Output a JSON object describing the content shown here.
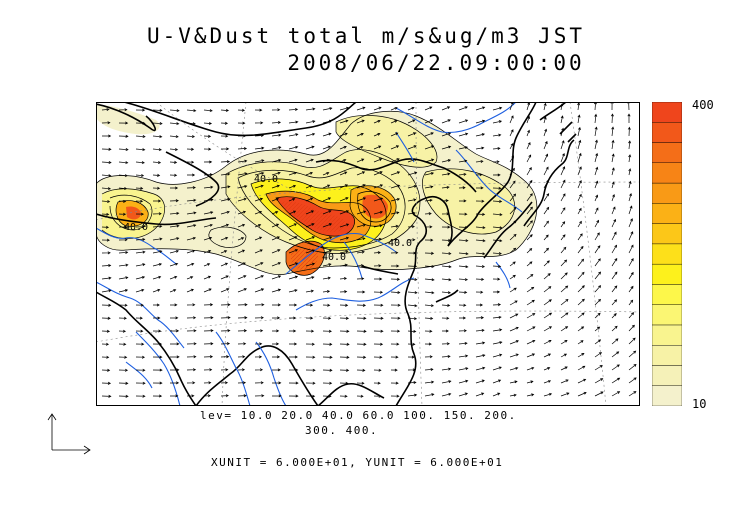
{
  "title": {
    "line1": "U-V&Dust total m/s&ug/m3 JST",
    "line2": "2008/06/22.09:00:00"
  },
  "colorbar": {
    "max_label": "400",
    "min_label": "10",
    "colors": [
      "#f4f1cc",
      "#f5f1b8",
      "#f7f2a6",
      "#f9f48f",
      "#fbf673",
      "#fdf74a",
      "#fdf11c",
      "#fde01a",
      "#fcc718",
      "#fbb116",
      "#f99a16",
      "#f78416",
      "#f46e18",
      "#f2581a",
      "#ef451c"
    ]
  },
  "contour_levels": {
    "line1": "lev= 10.0 20.0 40.0 60.0 100. 150. 200.",
    "line2": "300. 400."
  },
  "vector_units": {
    "text": "XUNIT = 6.000E+01, YUNIT = 6.000E+01"
  },
  "map_labels": {
    "label_a": "40.0",
    "label_b": "40.0",
    "label_c": "40.0",
    "label_d": "40.0"
  }
}
